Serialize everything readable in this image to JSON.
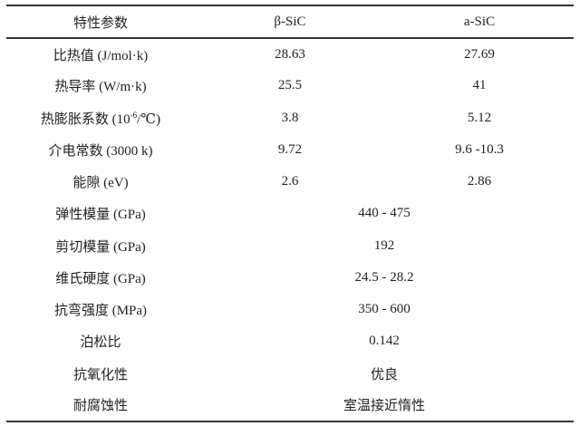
{
  "table": {
    "headers": [
      "特性参数",
      "β-SiC",
      "a-SiC"
    ],
    "rows": [
      {
        "param": "比热值 (J/mol·k)",
        "beta": "28.63",
        "alpha": "27.69"
      },
      {
        "param": "热导率 (W/m·k)",
        "beta": "25.5",
        "alpha": "41"
      },
      {
        "param_prefix": "热膨胀系数 (10",
        "param_sup": "-6",
        "param_suffix": "/℃)",
        "beta": "3.8",
        "alpha": "5.12"
      },
      {
        "param": "介电常数 (3000 k)",
        "beta": "9.72",
        "alpha": "9.6 -10.3"
      },
      {
        "param": "能隙 (eV)",
        "beta": "2.6",
        "alpha": "2.86"
      },
      {
        "param": "弹性模量 (GPa)",
        "shared": "440 - 475"
      },
      {
        "param": "剪切模量 (GPa)",
        "shared": "192"
      },
      {
        "param": "维氏硬度 (GPa)",
        "shared": "24.5 - 28.2"
      },
      {
        "param": "抗弯强度 (MPa)",
        "shared": "350 - 600"
      },
      {
        "param": "泊松比",
        "shared": "0.142"
      },
      {
        "param": "抗氧化性",
        "shared": "优良"
      },
      {
        "param": "耐腐蚀性",
        "shared": "室温接近惰性"
      }
    ]
  }
}
